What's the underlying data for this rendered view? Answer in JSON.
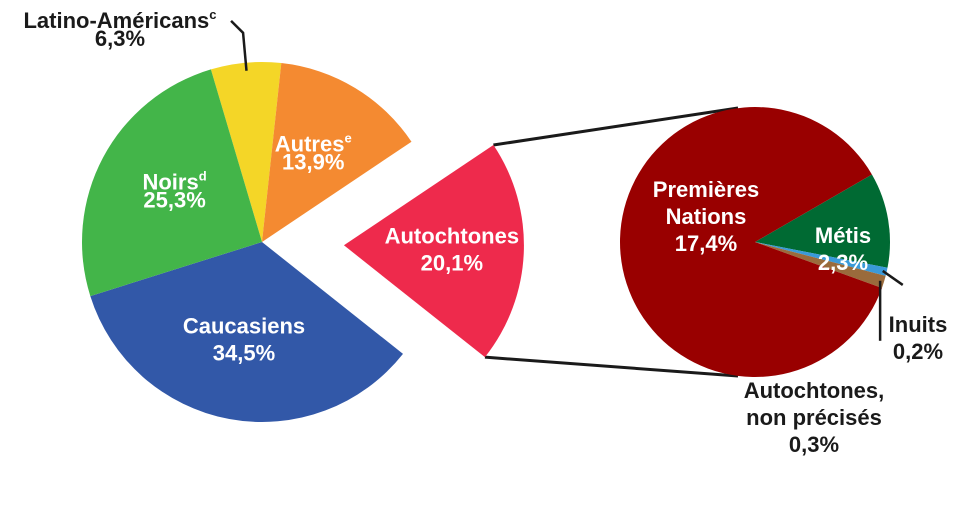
{
  "chart_data": [
    {
      "type": "pie",
      "title": "",
      "slices": [
        {
          "name": "Latino-Américans",
          "sup": "c",
          "value": 6.3,
          "label": "6,3%",
          "color": "#f4d627"
        },
        {
          "name": "Autres",
          "sup": "e",
          "value": 13.9,
          "label": "13,9%",
          "color": "#f48a31"
        },
        {
          "name": "Autochtones",
          "sup": "",
          "value": 20.1,
          "label": "20,1%",
          "color": "#ee2a4c",
          "exploded": true
        },
        {
          "name": "Caucasiens",
          "sup": "",
          "value": 34.5,
          "label": "34,5%",
          "color": "#3258a8"
        },
        {
          "name": "Noirs",
          "sup": "d",
          "value": 25.3,
          "label": "25,3%",
          "color": "#43b549"
        }
      ]
    },
    {
      "type": "pie",
      "title": "",
      "breakdown_of": "Autochtones",
      "slices": [
        {
          "name_lines": [
            "Premières",
            "Nations"
          ],
          "value": 17.4,
          "label": "17,4%",
          "color": "#990000"
        },
        {
          "name_lines": [
            "Métis"
          ],
          "value": 2.3,
          "label": "2,3%",
          "color": "#006a33"
        },
        {
          "name_lines": [
            "Inuits"
          ],
          "value": 0.2,
          "label": "0,2%",
          "color": "#3a9ad9"
        },
        {
          "name_lines": [
            "Autochtones,",
            "non précisés"
          ],
          "value": 0.3,
          "label": "0,3%",
          "color": "#9a6b3c"
        }
      ]
    }
  ]
}
